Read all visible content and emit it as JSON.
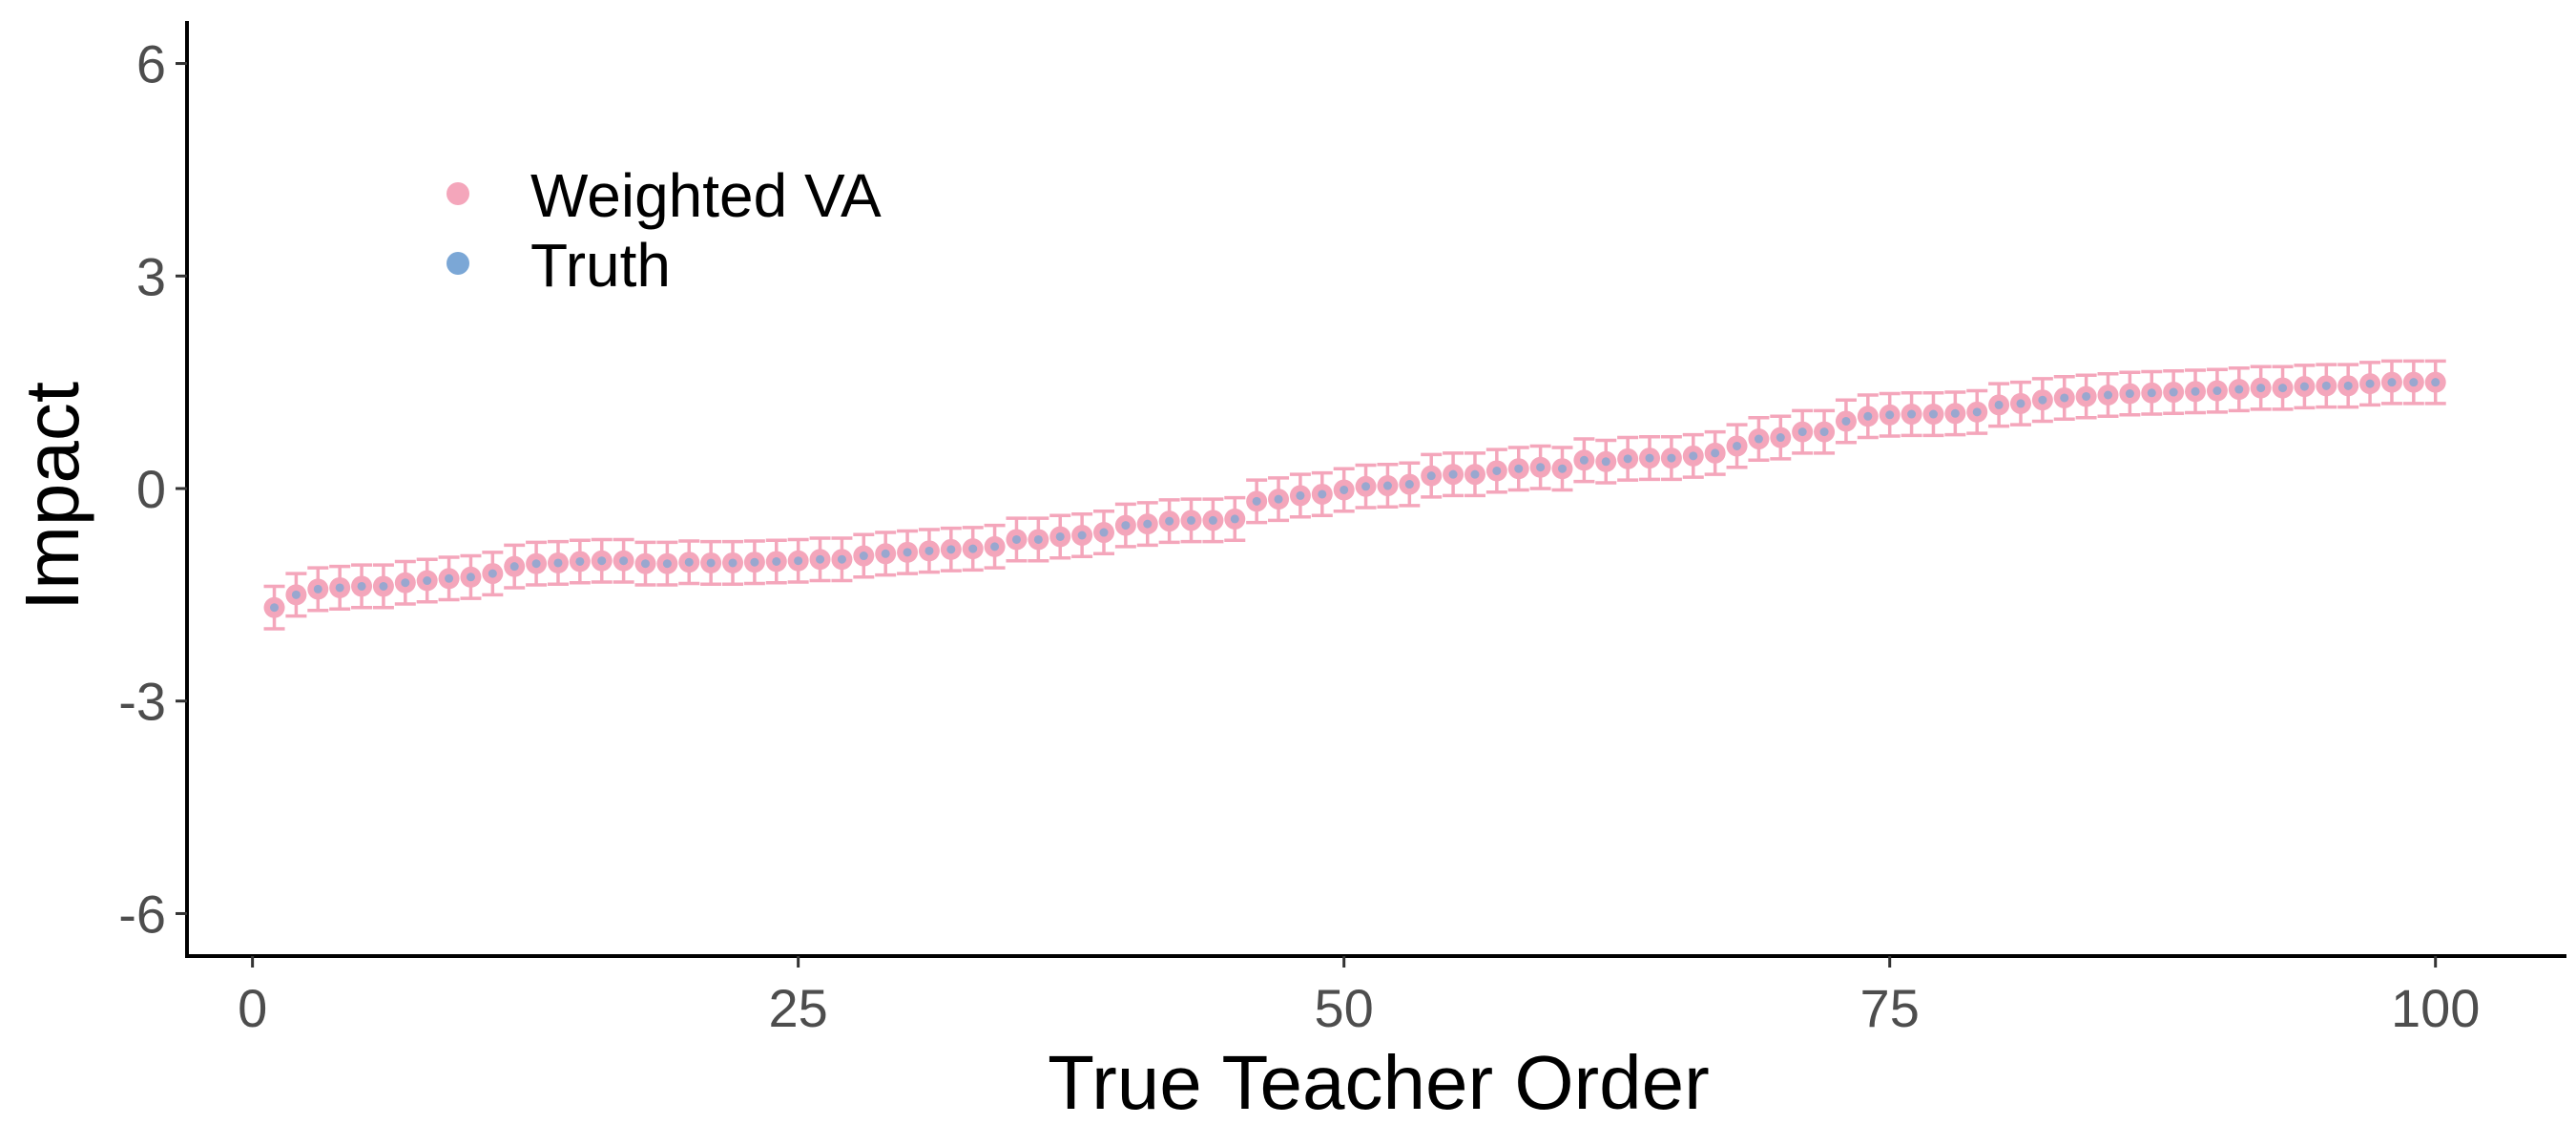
{
  "chart_data": {
    "type": "scatter",
    "title": "",
    "xlabel": "True Teacher Order",
    "ylabel": "Impact",
    "xlim": [
      -3,
      106
    ],
    "ylim": [
      -6.6,
      6.6
    ],
    "x_ticks": [
      0,
      25,
      50,
      75,
      100
    ],
    "y_ticks": [
      -6,
      -3,
      0,
      3,
      6
    ],
    "x_tick_labels": [
      "0",
      "25",
      "50",
      "75",
      "100"
    ],
    "y_tick_labels": [
      "-6",
      "-3",
      "0",
      "3",
      "6"
    ],
    "grid": false,
    "legend_position": "top-left",
    "error_bar_half_width": 0.3,
    "x": [
      1,
      2,
      3,
      4,
      5,
      6,
      7,
      8,
      9,
      10,
      11,
      12,
      13,
      14,
      15,
      16,
      17,
      18,
      19,
      20,
      21,
      22,
      23,
      24,
      25,
      26,
      27,
      28,
      29,
      30,
      31,
      32,
      33,
      34,
      35,
      36,
      37,
      38,
      39,
      40,
      41,
      42,
      43,
      44,
      45,
      46,
      47,
      48,
      49,
      50,
      51,
      52,
      53,
      54,
      55,
      56,
      57,
      58,
      59,
      60,
      61,
      62,
      63,
      64,
      65,
      66,
      67,
      68,
      69,
      70,
      71,
      72,
      73,
      74,
      75,
      76,
      77,
      78,
      79,
      80,
      81,
      82,
      83,
      84,
      85,
      86,
      87,
      88,
      89,
      90,
      91,
      92,
      93,
      94,
      95,
      96,
      97,
      98,
      99,
      100
    ],
    "series": [
      {
        "name": "Weighted VA",
        "color": "#F4A6BB",
        "values": [
          -1.68,
          -1.5,
          -1.42,
          -1.4,
          -1.38,
          -1.38,
          -1.33,
          -1.3,
          -1.27,
          -1.25,
          -1.2,
          -1.1,
          -1.06,
          -1.05,
          -1.03,
          -1.02,
          -1.02,
          -1.06,
          -1.06,
          -1.04,
          -1.05,
          -1.05,
          -1.04,
          -1.03,
          -1.02,
          -1.0,
          -1.0,
          -0.95,
          -0.92,
          -0.9,
          -0.88,
          -0.86,
          -0.85,
          -0.82,
          -0.72,
          -0.72,
          -0.68,
          -0.66,
          -0.62,
          -0.52,
          -0.5,
          -0.46,
          -0.45,
          -0.45,
          -0.43,
          -0.18,
          -0.15,
          -0.1,
          -0.08,
          -0.02,
          0.03,
          0.04,
          0.06,
          0.18,
          0.2,
          0.2,
          0.25,
          0.28,
          0.3,
          0.28,
          0.4,
          0.38,
          0.42,
          0.43,
          0.43,
          0.46,
          0.5,
          0.6,
          0.7,
          0.72,
          0.8,
          0.8,
          0.95,
          1.02,
          1.04,
          1.05,
          1.05,
          1.06,
          1.08,
          1.18,
          1.2,
          1.25,
          1.28,
          1.3,
          1.32,
          1.34,
          1.35,
          1.36,
          1.37,
          1.38,
          1.4,
          1.42,
          1.42,
          1.44,
          1.45,
          1.45,
          1.48,
          1.5,
          1.5,
          1.5
        ]
      },
      {
        "name": "Truth",
        "color": "#7BA7D6",
        "values": [
          -1.68,
          -1.5,
          -1.42,
          -1.4,
          -1.38,
          -1.38,
          -1.33,
          -1.3,
          -1.27,
          -1.25,
          -1.2,
          -1.1,
          -1.06,
          -1.05,
          -1.03,
          -1.02,
          -1.02,
          -1.06,
          -1.06,
          -1.04,
          -1.05,
          -1.05,
          -1.04,
          -1.03,
          -1.02,
          -1.0,
          -1.0,
          -0.95,
          -0.92,
          -0.9,
          -0.88,
          -0.86,
          -0.85,
          -0.82,
          -0.72,
          -0.72,
          -0.68,
          -0.66,
          -0.62,
          -0.52,
          -0.5,
          -0.46,
          -0.45,
          -0.45,
          -0.43,
          -0.18,
          -0.15,
          -0.1,
          -0.08,
          -0.02,
          0.03,
          0.04,
          0.06,
          0.18,
          0.2,
          0.2,
          0.25,
          0.28,
          0.3,
          0.28,
          0.4,
          0.38,
          0.42,
          0.43,
          0.43,
          0.46,
          0.5,
          0.6,
          0.7,
          0.72,
          0.8,
          0.8,
          0.95,
          1.02,
          1.04,
          1.05,
          1.05,
          1.06,
          1.08,
          1.18,
          1.2,
          1.25,
          1.28,
          1.3,
          1.32,
          1.34,
          1.35,
          1.36,
          1.37,
          1.38,
          1.4,
          1.42,
          1.42,
          1.44,
          1.45,
          1.45,
          1.48,
          1.5,
          1.5,
          1.5
        ]
      }
    ]
  }
}
